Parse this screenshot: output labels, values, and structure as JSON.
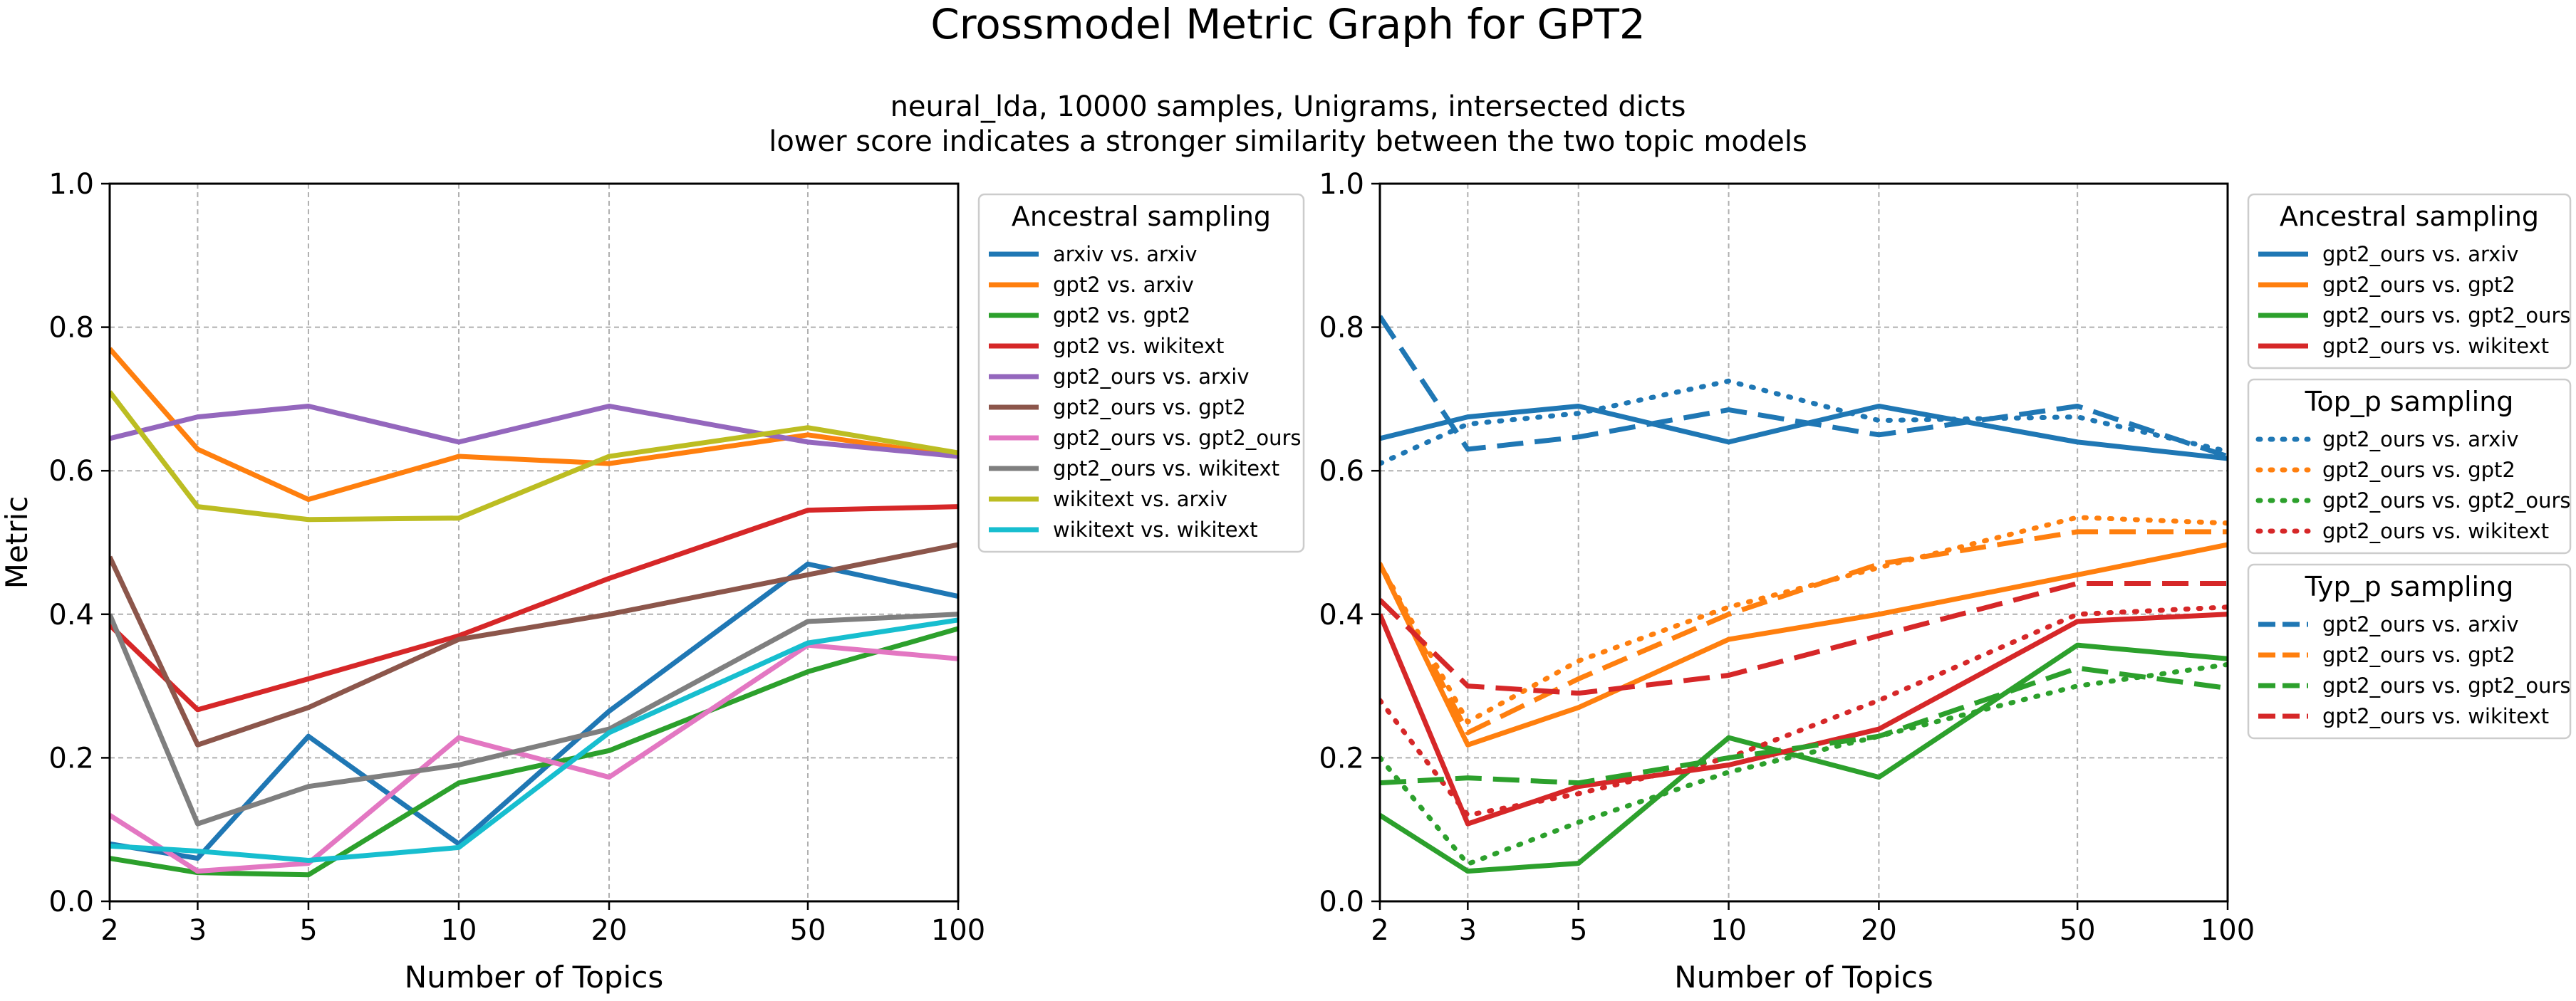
{
  "figure": {
    "title": "Crossmodel Metric Graph for GPT2",
    "subtitle_lines": [
      "neural_lda, 10000 samples, Unigrams, intersected dicts",
      "lower score indicates a stronger similarity between the two topic models"
    ]
  },
  "colors": {
    "blue": "#1f77b4",
    "orange": "#ff7f0e",
    "green": "#2ca02c",
    "red": "#d62728",
    "purple": "#9467bd",
    "brown": "#8c564b",
    "pink": "#e377c2",
    "gray": "#7f7f7f",
    "olive": "#bcbd22",
    "cyan": "#17becf"
  },
  "chart_data": [
    {
      "type": "line",
      "xlabel": "Number of Topics",
      "ylabel": "Metric",
      "x": [
        2,
        3,
        5,
        10,
        20,
        50,
        100
      ],
      "xscale": "log",
      "xticks": [
        "2",
        "3",
        "5",
        "10",
        "20",
        "50",
        "100"
      ],
      "ylim": [
        0,
        1
      ],
      "yticks": [
        "0.0",
        "0.2",
        "0.4",
        "0.6",
        "0.8",
        "1.0"
      ],
      "grid": true,
      "legend_position": "outside-right",
      "legends": [
        {
          "title": "Ancestral sampling",
          "series": [
            {
              "name": "arxiv vs. arxiv",
              "color": "#1f77b4",
              "style": "solid",
              "values": [
                0.08,
                0.06,
                0.23,
                0.08,
                0.265,
                0.47,
                0.425
              ]
            },
            {
              "name": "gpt2 vs. arxiv",
              "color": "#ff7f0e",
              "style": "solid",
              "values": [
                0.77,
                0.63,
                0.56,
                0.62,
                0.61,
                0.65,
                0.62
              ]
            },
            {
              "name": "gpt2 vs. gpt2",
              "color": "#2ca02c",
              "style": "solid",
              "values": [
                0.06,
                0.04,
                0.037,
                0.165,
                0.21,
                0.32,
                0.38
              ]
            },
            {
              "name": "gpt2 vs. wikitext",
              "color": "#d62728",
              "style": "solid",
              "values": [
                0.385,
                0.267,
                0.31,
                0.37,
                0.45,
                0.545,
                0.55
              ]
            },
            {
              "name": "gpt2_ours vs. arxiv",
              "color": "#9467bd",
              "style": "solid",
              "values": [
                0.645,
                0.675,
                0.69,
                0.64,
                0.69,
                0.64,
                0.62
              ]
            },
            {
              "name": "gpt2_ours vs. gpt2",
              "color": "#8c564b",
              "style": "solid",
              "values": [
                0.48,
                0.218,
                0.27,
                0.365,
                0.4,
                0.455,
                0.497
              ]
            },
            {
              "name": "gpt2_ours vs. gpt2_ours",
              "color": "#e377c2",
              "style": "solid",
              "values": [
                0.12,
                0.042,
                0.053,
                0.228,
                0.173,
                0.357,
                0.338
              ]
            },
            {
              "name": "gpt2_ours vs. wikitext",
              "color": "#7f7f7f",
              "style": "solid",
              "values": [
                0.4,
                0.108,
                0.16,
                0.19,
                0.24,
                0.39,
                0.4
              ]
            },
            {
              "name": "wikitext vs. arxiv",
              "color": "#bcbd22",
              "style": "solid",
              "values": [
                0.71,
                0.55,
                0.532,
                0.534,
                0.62,
                0.66,
                0.625
              ]
            },
            {
              "name": "wikitext vs. wikitext",
              "color": "#17becf",
              "style": "solid",
              "values": [
                0.077,
                0.07,
                0.057,
                0.075,
                0.235,
                0.36,
                0.392
              ]
            }
          ]
        }
      ]
    },
    {
      "type": "line",
      "xlabel": "Number of Topics",
      "ylabel": "",
      "x": [
        2,
        3,
        5,
        10,
        20,
        50,
        100
      ],
      "xscale": "log",
      "xticks": [
        "2",
        "3",
        "5",
        "10",
        "20",
        "50",
        "100"
      ],
      "ylim": [
        0,
        1
      ],
      "yticks": [
        "0.0",
        "0.2",
        "0.4",
        "0.6",
        "0.8",
        "1.0"
      ],
      "grid": true,
      "legend_position": "outside-right",
      "legends": [
        {
          "title": "Ancestral sampling",
          "series": [
            {
              "name": "gpt2_ours vs. arxiv",
              "color": "#1f77b4",
              "style": "solid",
              "values": [
                0.645,
                0.675,
                0.69,
                0.64,
                0.69,
                0.64,
                0.617
              ]
            },
            {
              "name": "gpt2_ours vs. gpt2",
              "color": "#ff7f0e",
              "style": "solid",
              "values": [
                0.47,
                0.218,
                0.27,
                0.365,
                0.4,
                0.455,
                0.497
              ]
            },
            {
              "name": "gpt2_ours vs. gpt2_ours",
              "color": "#2ca02c",
              "style": "solid",
              "values": [
                0.12,
                0.042,
                0.053,
                0.228,
                0.173,
                0.357,
                0.338
              ]
            },
            {
              "name": "gpt2_ours vs. wikitext",
              "color": "#d62728",
              "style": "solid",
              "values": [
                0.4,
                0.108,
                0.16,
                0.19,
                0.24,
                0.39,
                0.4
              ]
            }
          ]
        },
        {
          "title": "Top_p sampling",
          "series": [
            {
              "name": "gpt2_ours vs. arxiv",
              "color": "#1f77b4",
              "style": "dotted",
              "values": [
                0.61,
                0.665,
                0.68,
                0.725,
                0.67,
                0.675,
                0.627
              ]
            },
            {
              "name": "gpt2_ours vs. gpt2",
              "color": "#ff7f0e",
              "style": "dotted",
              "values": [
                0.47,
                0.25,
                0.335,
                0.41,
                0.465,
                0.535,
                0.527
              ]
            },
            {
              "name": "gpt2_ours vs. gpt2_ours",
              "color": "#2ca02c",
              "style": "dotted",
              "values": [
                0.2,
                0.052,
                0.11,
                0.18,
                0.23,
                0.3,
                0.33
              ]
            },
            {
              "name": "gpt2_ours vs. wikitext",
              "color": "#d62728",
              "style": "dotted",
              "values": [
                0.28,
                0.12,
                0.15,
                0.2,
                0.28,
                0.4,
                0.41
              ]
            }
          ]
        },
        {
          "title": "Typ_p sampling",
          "series": [
            {
              "name": "gpt2_ours vs. arxiv",
              "color": "#1f77b4",
              "style": "dashed",
              "values": [
                0.815,
                0.63,
                0.647,
                0.685,
                0.65,
                0.69,
                0.62
              ]
            },
            {
              "name": "gpt2_ours vs. gpt2",
              "color": "#ff7f0e",
              "style": "dashed",
              "values": [
                0.47,
                0.235,
                0.31,
                0.4,
                0.47,
                0.515,
                0.515
              ]
            },
            {
              "name": "gpt2_ours vs. gpt2_ours",
              "color": "#2ca02c",
              "style": "dashed",
              "values": [
                0.165,
                0.172,
                0.165,
                0.2,
                0.23,
                0.325,
                0.297
              ]
            },
            {
              "name": "gpt2_ours vs. wikitext",
              "color": "#d62728",
              "style": "dashed",
              "values": [
                0.42,
                0.3,
                0.29,
                0.315,
                0.37,
                0.443,
                0.443
              ]
            }
          ]
        }
      ]
    }
  ]
}
